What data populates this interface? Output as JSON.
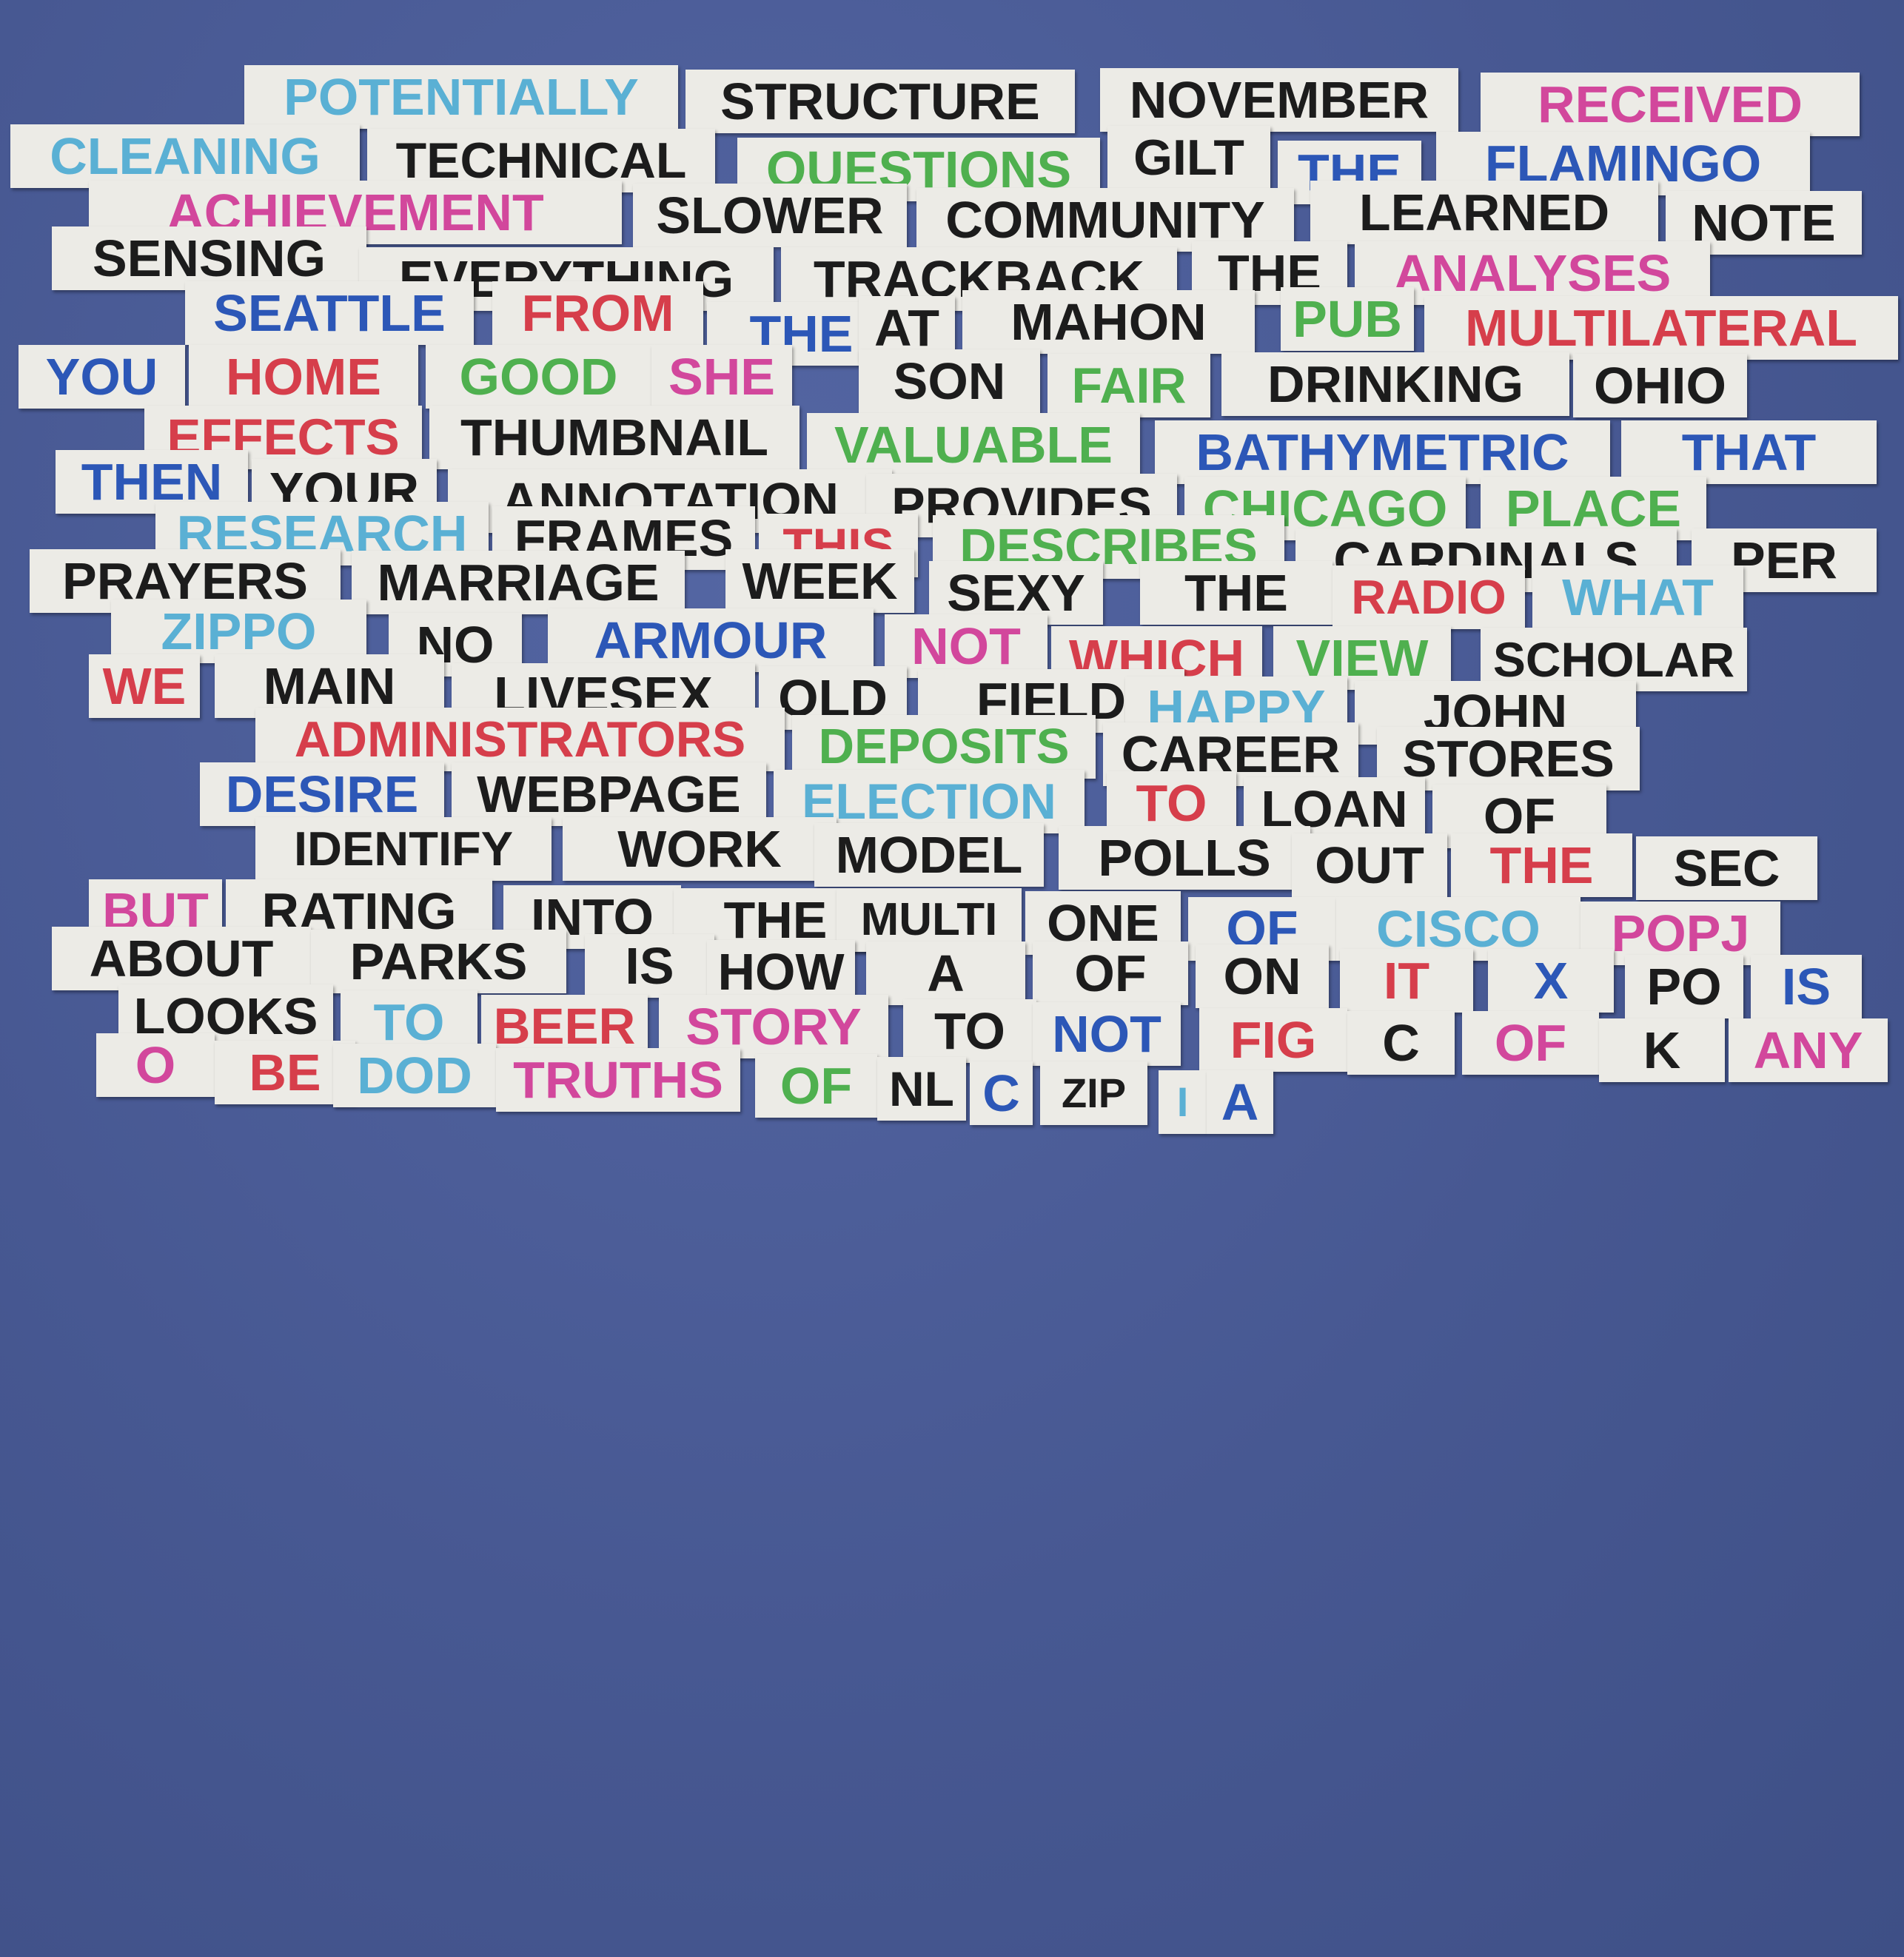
{
  "colors": {
    "background": "#4a5b97",
    "paper": "#ecebe6",
    "black": "#1c1c1c",
    "pink": "#d2479c",
    "red": "#d63e4b",
    "green": "#4fb04f",
    "light_blue": "#5ab0d4",
    "dark_blue": "#2c57b7"
  },
  "rows": [
    {
      "words": [
        {
          "text": "POTENTIALLY",
          "color": "lb"
        },
        {
          "text": "STRUCTURE",
          "color": "k"
        },
        {
          "text": "NOVEMBER",
          "color": "k"
        },
        {
          "text": "RECEIVED",
          "color": "pk"
        }
      ]
    },
    {
      "words": [
        {
          "text": "CLEANING",
          "color": "lb"
        },
        {
          "text": "TECHNICAL",
          "color": "k"
        },
        {
          "text": "QUESTIONS",
          "color": "g"
        },
        {
          "text": "GILT",
          "color": "k"
        },
        {
          "text": "THE",
          "color": "db"
        },
        {
          "text": "FLAMINGO",
          "color": "db"
        }
      ]
    },
    {
      "words": [
        {
          "text": "ACHIEVEMENT",
          "color": "pk"
        },
        {
          "text": "SLOWER",
          "color": "k"
        },
        {
          "text": "COMMUNITY",
          "color": "k"
        },
        {
          "text": "LEARNED",
          "color": "k"
        },
        {
          "text": "NOTE",
          "color": "k"
        }
      ]
    },
    {
      "words": [
        {
          "text": "SENSING",
          "color": "k"
        },
        {
          "text": "EVERYTHING",
          "color": "k"
        },
        {
          "text": "TRACKBACK",
          "color": "k"
        },
        {
          "text": "THE",
          "color": "k"
        },
        {
          "text": "ANALYSES",
          "color": "pk"
        }
      ]
    },
    {
      "words": [
        {
          "text": "SEATTLE",
          "color": "db"
        },
        {
          "text": "FROM",
          "color": "r"
        },
        {
          "text": "THE",
          "color": "db"
        },
        {
          "text": "AT",
          "color": "k"
        },
        {
          "text": "MAHON",
          "color": "k"
        },
        {
          "text": "PUB",
          "color": "g"
        },
        {
          "text": "MULTILATERAL",
          "color": "r"
        }
      ]
    },
    {
      "words": [
        {
          "text": "YOU",
          "color": "db"
        },
        {
          "text": "HOME",
          "color": "r"
        },
        {
          "text": "GOOD",
          "color": "g"
        },
        {
          "text": "SHE",
          "color": "pk"
        },
        {
          "text": "SON",
          "color": "k"
        },
        {
          "text": "FAIR",
          "color": "g"
        },
        {
          "text": "DRINKING",
          "color": "k"
        },
        {
          "text": "OHIO",
          "color": "k"
        }
      ]
    },
    {
      "words": [
        {
          "text": "EFFECTS",
          "color": "r"
        },
        {
          "text": "THUMBNAIL",
          "color": "k"
        },
        {
          "text": "VALUABLE",
          "color": "g"
        },
        {
          "text": "BATHYMETRIC",
          "color": "db"
        },
        {
          "text": "THAT",
          "color": "db"
        }
      ]
    },
    {
      "words": [
        {
          "text": "THEN",
          "color": "db"
        },
        {
          "text": "YOUR",
          "color": "k"
        },
        {
          "text": "ANNOTATION",
          "color": "k"
        },
        {
          "text": "PROVIDES",
          "color": "k"
        },
        {
          "text": "CHICAGO",
          "color": "g"
        },
        {
          "text": "PLACE",
          "color": "g"
        }
      ]
    },
    {
      "words": [
        {
          "text": "RESEARCH",
          "color": "lb"
        },
        {
          "text": "FRAMES",
          "color": "k"
        },
        {
          "text": "THIS",
          "color": "r"
        },
        {
          "text": "DESCRIBES",
          "color": "g"
        },
        {
          "text": "CARDINALS",
          "color": "k"
        },
        {
          "text": "PER",
          "color": "k"
        }
      ]
    },
    {
      "words": [
        {
          "text": "PRAYERS",
          "color": "k"
        },
        {
          "text": "MARRIAGE",
          "color": "k"
        },
        {
          "text": "WEEK",
          "color": "k"
        },
        {
          "text": "SEXY",
          "color": "k"
        },
        {
          "text": "THE",
          "color": "k"
        },
        {
          "text": "RADIO",
          "color": "r"
        },
        {
          "text": "WHAT",
          "color": "lb"
        }
      ]
    },
    {
      "words": [
        {
          "text": "ZIPPO",
          "color": "lb"
        },
        {
          "text": "NO",
          "color": "k"
        },
        {
          "text": "ARMOUR",
          "color": "db"
        },
        {
          "text": "NOT",
          "color": "pk"
        },
        {
          "text": "WHICH",
          "color": "r"
        },
        {
          "text": "VIEW",
          "color": "g"
        },
        {
          "text": "SCHOLAR",
          "color": "k"
        }
      ]
    },
    {
      "words": [
        {
          "text": "WE",
          "color": "r"
        },
        {
          "text": "MAIN",
          "color": "k"
        },
        {
          "text": "LIVESEX",
          "color": "k"
        },
        {
          "text": "OLD",
          "color": "k"
        },
        {
          "text": "FIELD",
          "color": "k"
        },
        {
          "text": "HAPPY",
          "color": "lb"
        },
        {
          "text": "JOHN",
          "color": "k"
        }
      ]
    },
    {
      "words": [
        {
          "text": "ADMINISTRATORS",
          "color": "r"
        },
        {
          "text": "DEPOSITS",
          "color": "g"
        },
        {
          "text": "CAREER",
          "color": "k"
        },
        {
          "text": "STORES",
          "color": "k"
        }
      ]
    },
    {
      "words": [
        {
          "text": "DESIRE",
          "color": "db"
        },
        {
          "text": "WEBPAGE",
          "color": "k"
        },
        {
          "text": "ELECTION",
          "color": "lb"
        },
        {
          "text": "TO",
          "color": "r"
        },
        {
          "text": "LOAN",
          "color": "k"
        },
        {
          "text": "OF",
          "color": "k"
        }
      ]
    },
    {
      "words": [
        {
          "text": "IDENTIFY",
          "color": "k"
        },
        {
          "text": "WORK",
          "color": "k"
        },
        {
          "text": "MODEL",
          "color": "k"
        },
        {
          "text": "POLLS",
          "color": "k"
        },
        {
          "text": "OUT",
          "color": "k"
        },
        {
          "text": "THE",
          "color": "r"
        },
        {
          "text": "SEC",
          "color": "k"
        }
      ]
    },
    {
      "words": [
        {
          "text": "BUT",
          "color": "pk"
        },
        {
          "text": "RATING",
          "color": "k"
        },
        {
          "text": "INTO",
          "color": "k"
        },
        {
          "text": "THE",
          "color": "k"
        },
        {
          "text": "MULTI",
          "color": "k"
        },
        {
          "text": "ONE",
          "color": "k"
        },
        {
          "text": "OF",
          "color": "db"
        },
        {
          "text": "CISCO",
          "color": "lb"
        },
        {
          "text": "POPJ",
          "color": "pk"
        }
      ]
    },
    {
      "words": [
        {
          "text": "ABOUT",
          "color": "k"
        },
        {
          "text": "PARKS",
          "color": "k"
        },
        {
          "text": "IS",
          "color": "k"
        },
        {
          "text": "HOW",
          "color": "k"
        },
        {
          "text": "A",
          "color": "k"
        },
        {
          "text": "OF",
          "color": "k"
        },
        {
          "text": "ON",
          "color": "k"
        },
        {
          "text": "IT",
          "color": "r"
        },
        {
          "text": "X",
          "color": "db"
        },
        {
          "text": "PO",
          "color": "k"
        },
        {
          "text": "IS",
          "color": "db"
        }
      ]
    },
    {
      "words": [
        {
          "text": "LOOKS",
          "color": "k"
        },
        {
          "text": "TO",
          "color": "lb"
        },
        {
          "text": "BEER",
          "color": "r"
        },
        {
          "text": "STORY",
          "color": "pk"
        },
        {
          "text": "TO",
          "color": "k"
        },
        {
          "text": "NOT",
          "color": "db"
        },
        {
          "text": "FIG",
          "color": "r"
        },
        {
          "text": "C",
          "color": "k"
        },
        {
          "text": "OF",
          "color": "pk"
        },
        {
          "text": "K",
          "color": "k"
        },
        {
          "text": "ANY",
          "color": "pk"
        }
      ]
    },
    {
      "words": [
        {
          "text": "O",
          "color": "pk"
        },
        {
          "text": "BE",
          "color": "r"
        },
        {
          "text": "DOD",
          "color": "lb"
        },
        {
          "text": "TRUTHS",
          "color": "pk"
        },
        {
          "text": "OF",
          "color": "g"
        },
        {
          "text": "NL",
          "color": "k"
        },
        {
          "text": "C",
          "color": "db"
        },
        {
          "text": "ZIP",
          "color": "k"
        },
        {
          "text": "I",
          "color": "lb"
        },
        {
          "text": "A",
          "color": "db"
        }
      ]
    }
  ]
}
